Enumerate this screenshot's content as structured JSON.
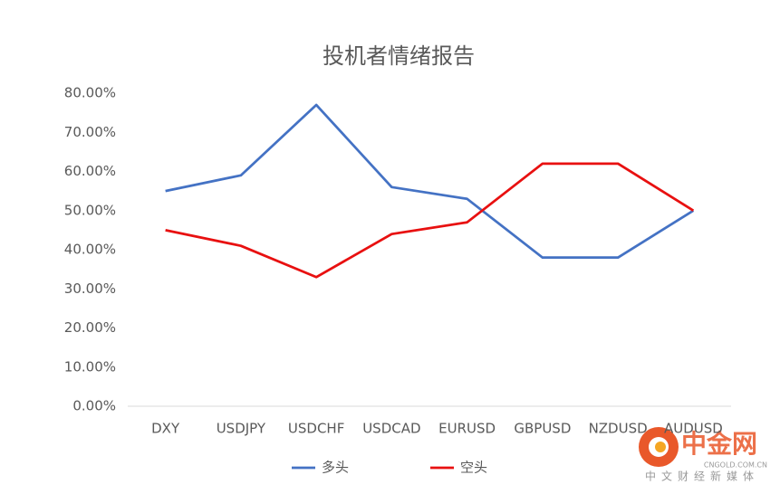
{
  "chart_data": {
    "type": "line",
    "title": "投机者情绪报告",
    "categories": [
      "DXY",
      "USDJPY",
      "USDCHF",
      "USDCAD",
      "EURUSD",
      "GBPUSD",
      "NZDUSD",
      "AUDUSD"
    ],
    "series": [
      {
        "name": "多头",
        "color": "#4472c4",
        "values": [
          55,
          59,
          77,
          56,
          53,
          38,
          38,
          50
        ]
      },
      {
        "name": "空头",
        "color": "#e81010",
        "values": [
          45,
          41,
          33,
          44,
          47,
          62,
          62,
          50
        ]
      }
    ],
    "ylim": [
      0,
      80
    ],
    "yticks": [
      {
        "value": 0,
        "label": "0.00%"
      },
      {
        "value": 10,
        "label": "10.00%"
      },
      {
        "value": 20,
        "label": "20.00%"
      },
      {
        "value": 30,
        "label": "30.00%"
      },
      {
        "value": 40,
        "label": "40.00%"
      },
      {
        "value": 50,
        "label": "50.00%"
      },
      {
        "value": 60,
        "label": "60.00%"
      },
      {
        "value": 70,
        "label": "70.00%"
      },
      {
        "value": 80,
        "label": "80.00%"
      }
    ],
    "grid": false,
    "legend": "bottom"
  },
  "watermark": {
    "brand": "中金网",
    "domain": "CNGOLD.COM.CN",
    "slogan": "中文财经新媒体"
  }
}
